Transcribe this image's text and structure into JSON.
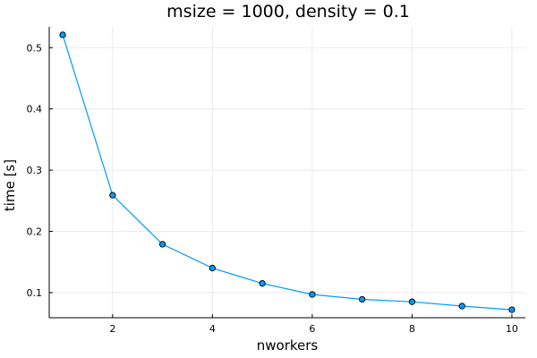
{
  "chart_data": {
    "type": "line",
    "title": "msize = 1000, density = 0.1",
    "xlabel": "nworkers",
    "ylabel": "time [s]",
    "x": [
      1,
      2,
      3,
      4,
      5,
      6,
      7,
      8,
      9,
      10
    ],
    "series": [
      {
        "values": [
          0.521,
          0.259,
          0.179,
          0.14,
          0.115,
          0.097,
          0.089,
          0.085,
          0.078,
          0.072
        ],
        "color": "#009af9"
      }
    ],
    "xlim": [
      0.73,
      10.27
    ],
    "ylim": [
      0.059,
      0.534
    ],
    "xticks": [
      2,
      4,
      6,
      8,
      10
    ],
    "yticks": [
      0.1,
      0.2,
      0.3,
      0.4,
      0.5
    ],
    "xtick_labels": [
      "2",
      "4",
      "6",
      "8",
      "10"
    ],
    "ytick_labels": [
      "0.1",
      "0.2",
      "0.3",
      "0.4",
      "0.5"
    ],
    "grid": true,
    "legend": "none",
    "marker": "circle"
  }
}
